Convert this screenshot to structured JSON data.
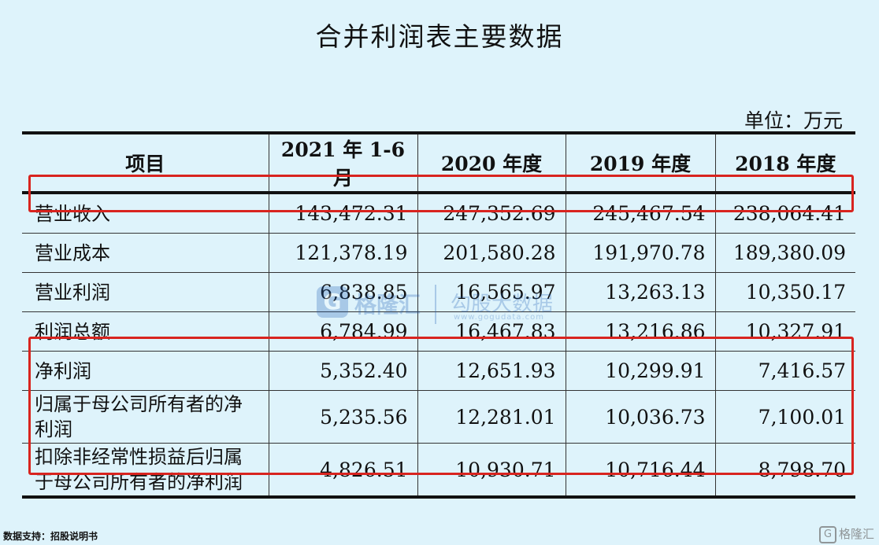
{
  "title": "合并利润表主要数据",
  "unit_label": "单位：万元",
  "table": {
    "headers": [
      "项目",
      "2021 年 1-6 月",
      "2020 年度",
      "2019 年度",
      "2018 年度"
    ],
    "rows": [
      {
        "label": "营业收入",
        "values": [
          "143,472.31",
          "247,352.69",
          "245,467.54",
          "238,064.41"
        ]
      },
      {
        "label": "营业成本",
        "values": [
          "121,378.19",
          "201,580.28",
          "191,970.78",
          "189,380.09"
        ]
      },
      {
        "label": "营业利润",
        "values": [
          "6,838.85",
          "16,565.97",
          "13,263.13",
          "10,350.17"
        ]
      },
      {
        "label": "利润总额",
        "values": [
          "6,784.99",
          "16,467.83",
          "13,216.86",
          "10,327.91"
        ]
      },
      {
        "label": "净利润",
        "values": [
          "5,352.40",
          "12,651.93",
          "10,299.91",
          "7,416.57"
        ]
      },
      {
        "label": "归属于母公司所有者的净利润",
        "values": [
          "5,235.56",
          "12,281.01",
          "10,036.73",
          "7,100.01"
        ]
      },
      {
        "label": "扣除非经常性损益后归属于母公司所有者的净利润",
        "values": [
          "4,826.51",
          "10,930.71",
          "10,716.44",
          "8,798.70"
        ]
      }
    ]
  },
  "watermark": {
    "brand": "格隆汇",
    "tagline": "勾股大数据",
    "url": "www.gogudata.com",
    "logo_letter": "G"
  },
  "source_note": "数据支持：招股说明书",
  "corner_logo": {
    "letter": "G",
    "text": "格隆汇"
  },
  "colors": {
    "background": "#def3fb",
    "highlight": "#d8241f",
    "watermark": "#1f5fb4"
  }
}
